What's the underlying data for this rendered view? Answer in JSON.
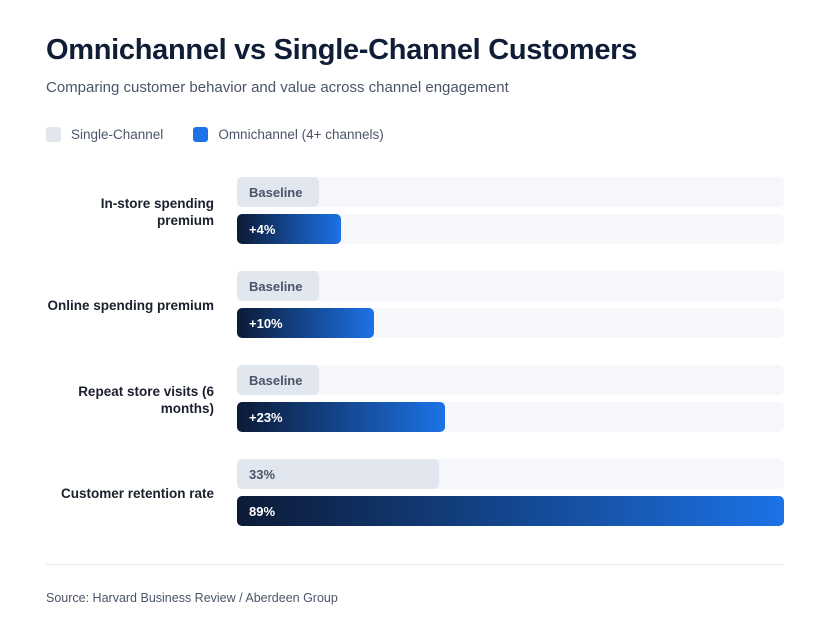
{
  "title": "Omnichannel vs Single-Channel Customers",
  "subtitle": "Comparing customer behavior and value across channel engagement",
  "colors": {
    "single": "#e1e6ef",
    "omni_start": "#0c1a36",
    "omni_end": "#1c72e6"
  },
  "chart_data": {
    "type": "bar",
    "orientation": "horizontal",
    "legend": [
      "Single-Channel",
      "Omnichannel (4+ channels)"
    ],
    "legend_placement": "top-left",
    "categories": [
      "In-store spending premium",
      "Online spending premium",
      "Repeat store visits (6 months)",
      "Customer retention rate"
    ],
    "series": [
      {
        "name": "Single-Channel",
        "labels": [
          "Baseline",
          "Baseline",
          "Baseline",
          "33%"
        ],
        "fill_percent": [
          15,
          15,
          15,
          37
        ]
      },
      {
        "name": "Omnichannel (4+ channels)",
        "labels": [
          "+4%",
          "+10%",
          "+23%",
          "89%"
        ],
        "fill_percent": [
          19,
          25,
          38,
          100
        ]
      }
    ]
  },
  "source": "Source: Harvard Business Review / Aberdeen Group"
}
